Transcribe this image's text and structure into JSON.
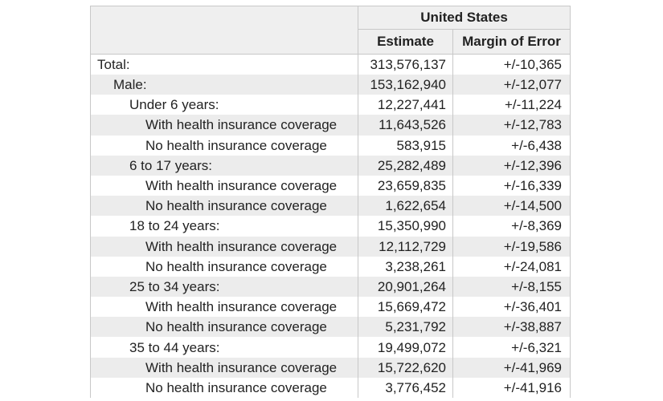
{
  "table": {
    "geography_header": "United States",
    "column_headers": {
      "estimate": "Estimate",
      "margin_of_error": "Margin of Error"
    },
    "rows": [
      {
        "label": "Total:",
        "level": 0,
        "estimate": "313,576,137",
        "moe": "+/-10,365"
      },
      {
        "label": "Male:",
        "level": 1,
        "estimate": "153,162,940",
        "moe": "+/-12,077"
      },
      {
        "label": "Under 6 years:",
        "level": 2,
        "estimate": "12,227,441",
        "moe": "+/-11,224"
      },
      {
        "label": "With health insurance coverage",
        "level": 3,
        "estimate": "11,643,526",
        "moe": "+/-12,783"
      },
      {
        "label": "No health insurance coverage",
        "level": 3,
        "estimate": "583,915",
        "moe": "+/-6,438"
      },
      {
        "label": "6 to 17 years:",
        "level": 2,
        "estimate": "25,282,489",
        "moe": "+/-12,396"
      },
      {
        "label": "With health insurance coverage",
        "level": 3,
        "estimate": "23,659,835",
        "moe": "+/-16,339"
      },
      {
        "label": "No health insurance coverage",
        "level": 3,
        "estimate": "1,622,654",
        "moe": "+/-14,500"
      },
      {
        "label": "18 to 24 years:",
        "level": 2,
        "estimate": "15,350,990",
        "moe": "+/-8,369"
      },
      {
        "label": "With health insurance coverage",
        "level": 3,
        "estimate": "12,112,729",
        "moe": "+/-19,586"
      },
      {
        "label": "No health insurance coverage",
        "level": 3,
        "estimate": "3,238,261",
        "moe": "+/-24,081"
      },
      {
        "label": "25 to 34 years:",
        "level": 2,
        "estimate": "20,901,264",
        "moe": "+/-8,155"
      },
      {
        "label": "With health insurance coverage",
        "level": 3,
        "estimate": "15,669,472",
        "moe": "+/-36,401"
      },
      {
        "label": "No health insurance coverage",
        "level": 3,
        "estimate": "5,231,792",
        "moe": "+/-38,887"
      },
      {
        "label": "35 to 44 years:",
        "level": 2,
        "estimate": "19,499,072",
        "moe": "+/-6,321"
      },
      {
        "label": "With health insurance coverage",
        "level": 3,
        "estimate": "15,722,620",
        "moe": "+/-41,969"
      },
      {
        "label": "No health insurance coverage",
        "level": 3,
        "estimate": "3,776,452",
        "moe": "+/-41,916"
      }
    ]
  }
}
